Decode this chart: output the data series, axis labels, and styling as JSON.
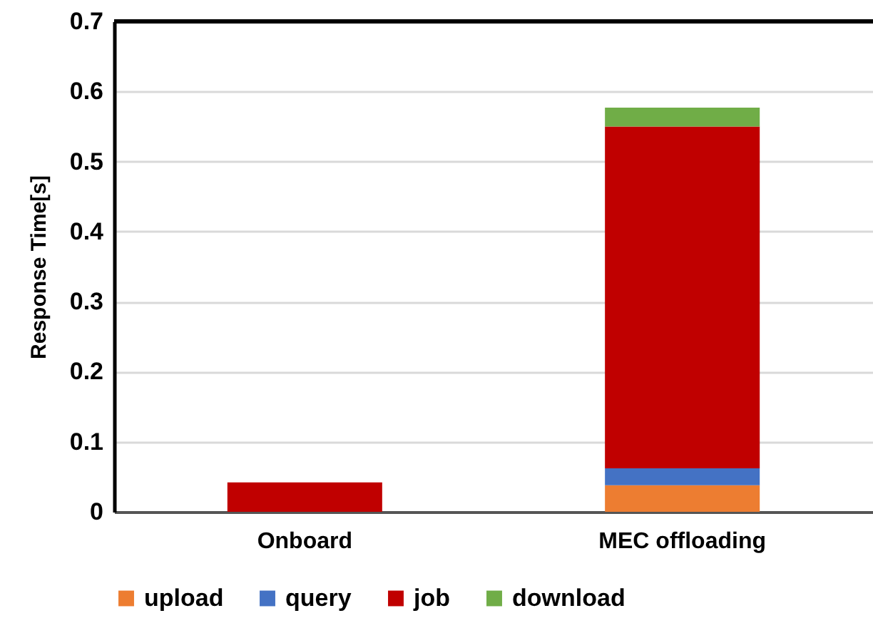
{
  "chart_data": {
    "type": "bar",
    "stacked": true,
    "ylabel": "Response Time[s]",
    "categories": [
      "Onboard",
      "MEC offloading"
    ],
    "series": [
      {
        "name": "upload",
        "color": "#ed7d31",
        "values": [
          0,
          0.038
        ]
      },
      {
        "name": "query",
        "color": "#4472c4",
        "values": [
          0,
          0.024
        ]
      },
      {
        "name": "job",
        "color": "#c00000",
        "values": [
          0.042,
          0.488
        ]
      },
      {
        "name": "download",
        "color": "#70ad47",
        "values": [
          0,
          0.027
        ]
      }
    ],
    "ylim": [
      0,
      0.7
    ],
    "yticks": [
      0,
      0.1,
      0.2,
      0.3,
      0.4,
      0.5,
      0.6,
      0.7
    ],
    "grid": "y",
    "legend": "bottom"
  }
}
